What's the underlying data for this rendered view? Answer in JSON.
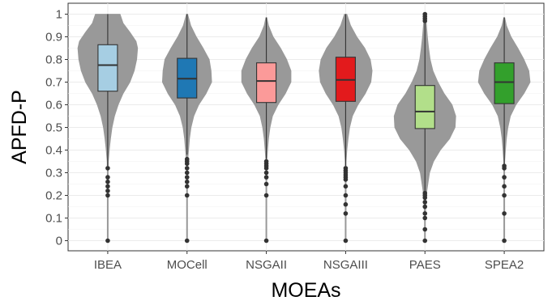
{
  "chart_data": {
    "type": "violin",
    "xlabel": "MOEAs",
    "ylabel": "APFD-P",
    "ylim": [
      0,
      1
    ],
    "yticks": [
      0,
      0.1,
      0.2,
      0.3,
      0.4,
      0.5,
      0.6,
      0.7,
      0.8,
      0.9,
      1
    ],
    "yticklabels": [
      "0",
      "0.1",
      "0.2",
      "0.3",
      "0.4",
      "0.5",
      "0.6",
      "0.7",
      "0.8",
      "0.9",
      "1"
    ],
    "grid": true,
    "legend": "none",
    "violin_color": "#999999",
    "categories": [
      "IBEA",
      "MOCell",
      "NSGAII",
      "NSGAIII",
      "PAES",
      "SPEA2"
    ],
    "series": [
      {
        "category": "IBEA",
        "color": "#a6cee3",
        "q1": 0.66,
        "median": 0.775,
        "q3": 0.865,
        "whisker_low": 0.33,
        "whisker_high": 1.0,
        "violin_min": 0.0,
        "violin_max": 1.0,
        "density": [
          [
            0.0,
            0.002
          ],
          [
            0.05,
            0.002
          ],
          [
            0.1,
            0.003
          ],
          [
            0.2,
            0.005
          ],
          [
            0.3,
            0.01
          ],
          [
            0.35,
            0.02
          ],
          [
            0.4,
            0.05
          ],
          [
            0.45,
            0.09
          ],
          [
            0.5,
            0.14
          ],
          [
            0.55,
            0.22
          ],
          [
            0.6,
            0.34
          ],
          [
            0.65,
            0.5
          ],
          [
            0.7,
            0.72
          ],
          [
            0.75,
            0.86
          ],
          [
            0.8,
            0.94
          ],
          [
            0.85,
            0.97
          ],
          [
            0.88,
            0.92
          ],
          [
            0.92,
            0.72
          ],
          [
            0.96,
            0.5
          ],
          [
            1.0,
            0.4
          ]
        ],
        "outliers": [
          0.0,
          0.2,
          0.22,
          0.24,
          0.26,
          0.28,
          0.32
        ]
      },
      {
        "category": "MOCell",
        "color": "#1f78b4",
        "q1": 0.63,
        "median": 0.715,
        "q3": 0.805,
        "whisker_low": 0.38,
        "whisker_high": 1.0,
        "violin_min": 0.0,
        "violin_max": 1.0,
        "density": [
          [
            0.0,
            0.002
          ],
          [
            0.1,
            0.003
          ],
          [
            0.2,
            0.005
          ],
          [
            0.3,
            0.01
          ],
          [
            0.35,
            0.02
          ],
          [
            0.4,
            0.05
          ],
          [
            0.45,
            0.08
          ],
          [
            0.5,
            0.13
          ],
          [
            0.55,
            0.22
          ],
          [
            0.6,
            0.38
          ],
          [
            0.65,
            0.62
          ],
          [
            0.7,
            0.8
          ],
          [
            0.75,
            0.78
          ],
          [
            0.8,
            0.72
          ],
          [
            0.85,
            0.52
          ],
          [
            0.9,
            0.3
          ],
          [
            0.95,
            0.12
          ],
          [
            1.0,
            0.02
          ]
        ],
        "outliers": [
          0.0,
          0.2,
          0.24,
          0.26,
          0.28,
          0.3,
          0.32,
          0.34,
          0.35,
          0.36
        ]
      },
      {
        "category": "NSGAII",
        "color": "#fb9a99",
        "q1": 0.61,
        "median": 0.705,
        "q3": 0.785,
        "whisker_low": 0.36,
        "whisker_high": 0.985,
        "violin_min": 0.0,
        "violin_max": 0.985,
        "density": [
          [
            0.0,
            0.002
          ],
          [
            0.1,
            0.003
          ],
          [
            0.2,
            0.005
          ],
          [
            0.3,
            0.008
          ],
          [
            0.35,
            0.015
          ],
          [
            0.4,
            0.04
          ],
          [
            0.45,
            0.07
          ],
          [
            0.5,
            0.12
          ],
          [
            0.55,
            0.2
          ],
          [
            0.6,
            0.38
          ],
          [
            0.65,
            0.62
          ],
          [
            0.7,
            0.8
          ],
          [
            0.75,
            0.8
          ],
          [
            0.8,
            0.66
          ],
          [
            0.85,
            0.46
          ],
          [
            0.9,
            0.22
          ],
          [
            0.95,
            0.07
          ],
          [
            0.985,
            0.01
          ]
        ],
        "outliers": [
          0.0,
          0.2,
          0.25,
          0.28,
          0.3,
          0.32,
          0.33,
          0.34,
          0.35
        ]
      },
      {
        "category": "NSGAIII",
        "color": "#e31a1c",
        "q1": 0.615,
        "median": 0.71,
        "q3": 0.81,
        "whisker_low": 0.33,
        "whisker_high": 1.0,
        "violin_min": 0.0,
        "violin_max": 1.0,
        "density": [
          [
            0.0,
            0.002
          ],
          [
            0.1,
            0.003
          ],
          [
            0.2,
            0.005
          ],
          [
            0.3,
            0.008
          ],
          [
            0.35,
            0.015
          ],
          [
            0.4,
            0.04
          ],
          [
            0.45,
            0.08
          ],
          [
            0.5,
            0.13
          ],
          [
            0.55,
            0.22
          ],
          [
            0.6,
            0.4
          ],
          [
            0.65,
            0.64
          ],
          [
            0.7,
            0.82
          ],
          [
            0.75,
            0.86
          ],
          [
            0.8,
            0.8
          ],
          [
            0.85,
            0.62
          ],
          [
            0.9,
            0.36
          ],
          [
            0.95,
            0.16
          ],
          [
            1.0,
            0.04
          ]
        ],
        "outliers": [
          0.0,
          0.12,
          0.16,
          0.2,
          0.24,
          0.27,
          0.28,
          0.29,
          0.3,
          0.31,
          0.32
        ]
      },
      {
        "category": "PAES",
        "color": "#b2df8a",
        "q1": 0.495,
        "median": 0.57,
        "q3": 0.685,
        "whisker_low": 0.215,
        "whisker_high": 0.96,
        "violin_min": 0.0,
        "violin_max": 1.0,
        "density": [
          [
            0.0,
            0.005
          ],
          [
            0.1,
            0.01
          ],
          [
            0.2,
            0.04
          ],
          [
            0.3,
            0.15
          ],
          [
            0.35,
            0.28
          ],
          [
            0.4,
            0.5
          ],
          [
            0.45,
            0.8
          ],
          [
            0.5,
            0.98
          ],
          [
            0.55,
            1.0
          ],
          [
            0.6,
            0.88
          ],
          [
            0.65,
            0.62
          ],
          [
            0.7,
            0.42
          ],
          [
            0.75,
            0.26
          ],
          [
            0.8,
            0.17
          ],
          [
            0.85,
            0.12
          ],
          [
            0.9,
            0.08
          ],
          [
            0.95,
            0.05
          ],
          [
            1.0,
            0.02
          ]
        ],
        "outliers": [
          0.0,
          0.05,
          0.1,
          0.12,
          0.15,
          0.17,
          0.19,
          0.2,
          0.21,
          0.97,
          0.98,
          0.99,
          1.0
        ]
      },
      {
        "category": "SPEA2",
        "color": "#33a02c",
        "q1": 0.605,
        "median": 0.7,
        "q3": 0.785,
        "whisker_low": 0.34,
        "whisker_high": 0.985,
        "violin_min": 0.0,
        "violin_max": 0.985,
        "density": [
          [
            0.0,
            0.002
          ],
          [
            0.1,
            0.003
          ],
          [
            0.2,
            0.005
          ],
          [
            0.3,
            0.008
          ],
          [
            0.35,
            0.015
          ],
          [
            0.4,
            0.04
          ],
          [
            0.45,
            0.07
          ],
          [
            0.5,
            0.12
          ],
          [
            0.55,
            0.2
          ],
          [
            0.6,
            0.38
          ],
          [
            0.65,
            0.64
          ],
          [
            0.7,
            0.84
          ],
          [
            0.75,
            0.8
          ],
          [
            0.8,
            0.64
          ],
          [
            0.85,
            0.44
          ],
          [
            0.9,
            0.22
          ],
          [
            0.95,
            0.07
          ],
          [
            0.985,
            0.01
          ]
        ],
        "outliers": [
          0.0,
          0.12,
          0.2,
          0.24,
          0.28,
          0.32,
          0.33
        ]
      }
    ]
  }
}
